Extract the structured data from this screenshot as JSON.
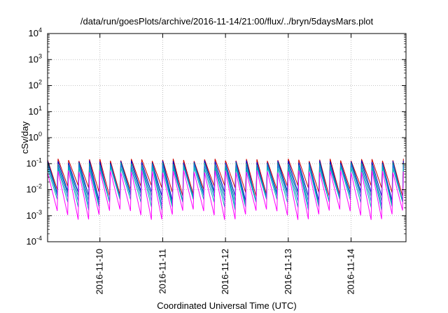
{
  "chart_data": {
    "type": "line",
    "title": "/data/run/goesPlots/archive/2016-11-14/21:00/flux/../bryn/5daysMars.plot",
    "xlabel": "Coordinated Universal Time (UTC)",
    "ylabel": "cSv/day",
    "y_scale": "log",
    "ylim_exponent": [
      -4,
      4
    ],
    "y_ticks": [
      {
        "base": "10",
        "exp": "4"
      },
      {
        "base": "10",
        "exp": "3"
      },
      {
        "base": "10",
        "exp": "2"
      },
      {
        "base": "10",
        "exp": "1"
      },
      {
        "base": "10",
        "exp": "0"
      },
      {
        "base": "10",
        "exp": "-1"
      },
      {
        "base": "10",
        "exp": "-2"
      },
      {
        "base": "10",
        "exp": "-3"
      },
      {
        "base": "10",
        "exp": "-4"
      }
    ],
    "x_range": [
      "2016-11-09 04:00",
      "2016-11-14 21:00"
    ],
    "x_ticks": [
      "2016-11-10",
      "2016-11-11",
      "2016-11-12",
      "2016-11-13",
      "2016-11-14"
    ],
    "grid": true,
    "legend": "none",
    "cycle_period_hours": 4,
    "series_colors": [
      "#cc0000",
      "#0000cc",
      "#009999",
      "#1a73e8",
      "#00b3b3",
      "#ff00ff"
    ],
    "series": [
      {
        "peak": 0.14,
        "trough": 0.01
      },
      {
        "peak": 0.12,
        "trough": 0.006
      },
      {
        "peak": 0.1,
        "trough": 0.005
      },
      {
        "peak": 0.085,
        "trough": 0.004
      },
      {
        "peak": 0.07,
        "trough": 0.003
      },
      {
        "peak": 0.05,
        "trough": 0.0012
      }
    ]
  }
}
